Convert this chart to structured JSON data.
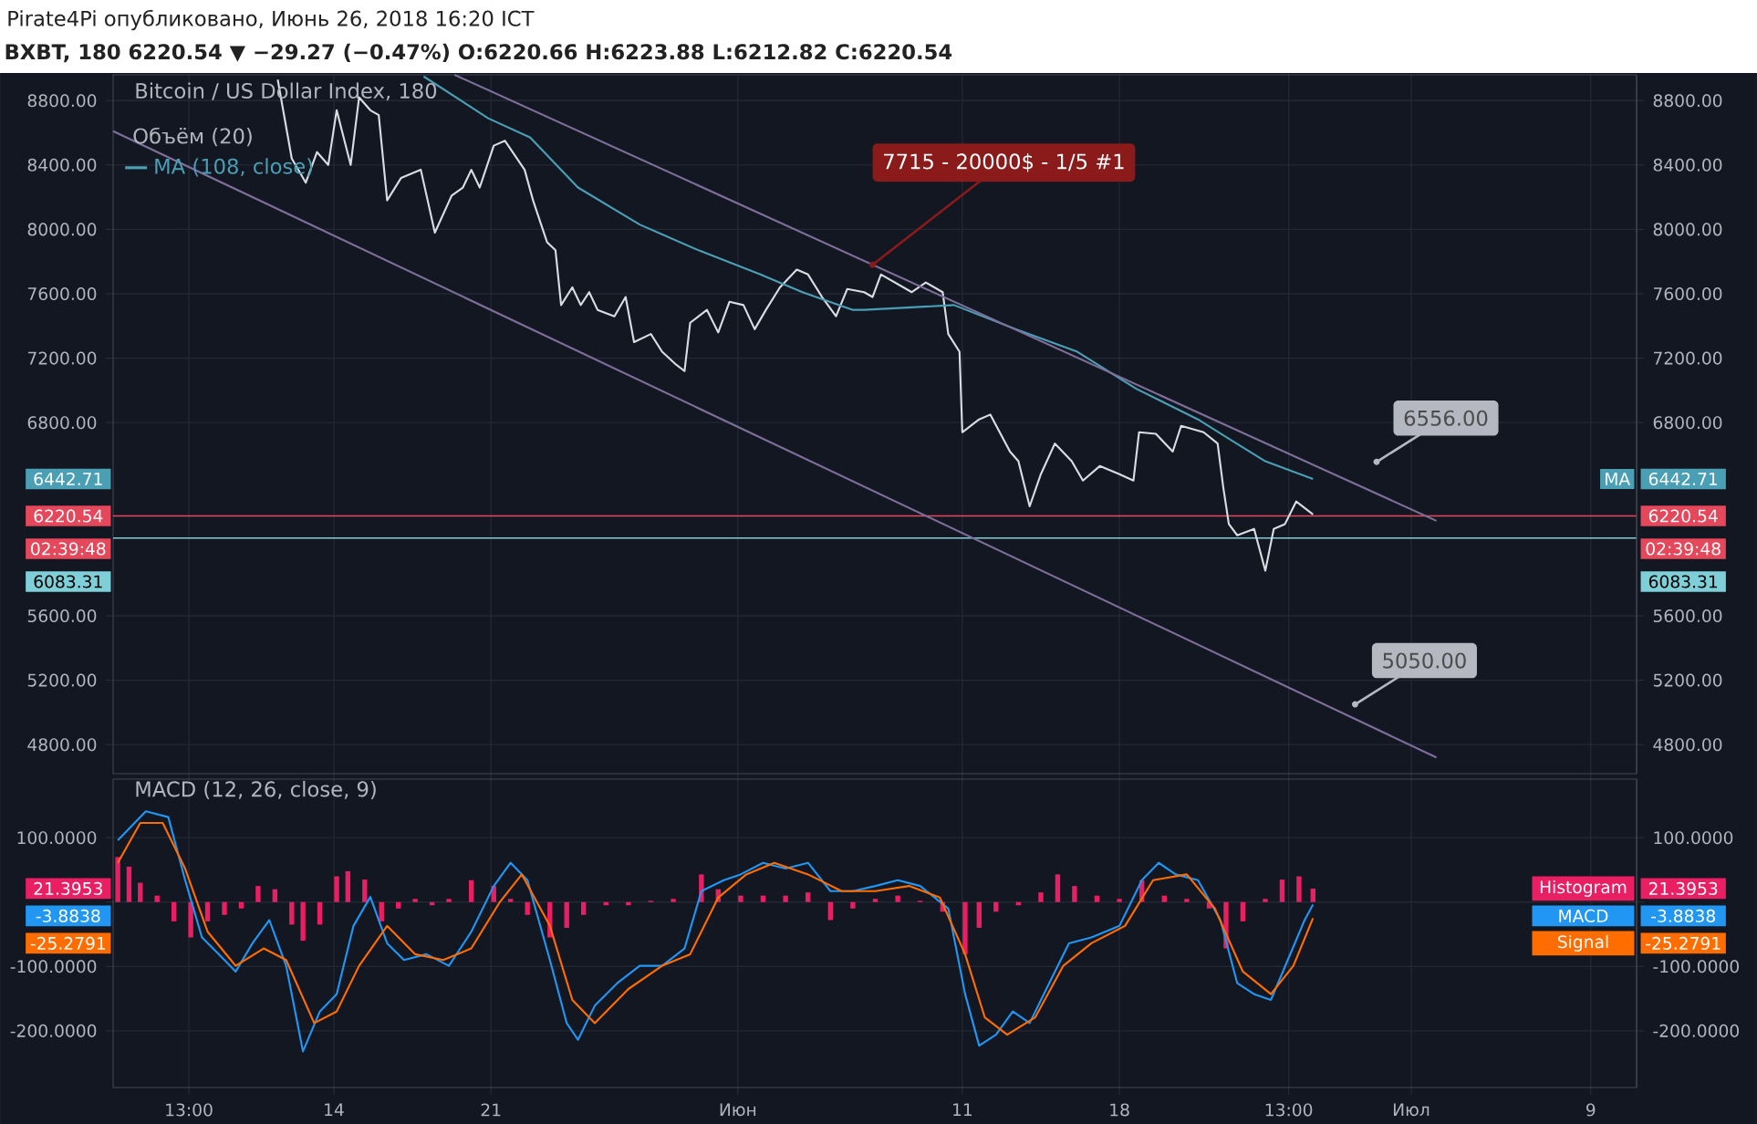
{
  "chart_data": [
    {
      "type": "line",
      "title": "Bitcoin / US Dollar Index, 180",
      "subtitle": "BXBT, 180 6220.54 ▼ −29.27 (−0.47%) O:6220.66 H:6223.88 L:6212.82 C:6220.54",
      "xlim": [
        "2018-05-04T04:00",
        "2018-07-11T01:00"
      ],
      "xticks": [
        {
          "value": "2018-05-07T13:00",
          "label": null
        },
        {
          "value": "2018-05-14",
          "label": null
        },
        {
          "value": "2018-05-21",
          "label": null
        },
        {
          "value": "2018-06-01",
          "label": null
        },
        {
          "value": "2018-06-11",
          "label": null
        },
        {
          "value": "2018-06-18",
          "label": null
        },
        {
          "value": "2018-06-25T13:00",
          "label": null
        },
        {
          "value": "2018-07-01",
          "label": null
        },
        {
          "value": "2018-07-09",
          "label": null
        }
      ],
      "ylim": [
        4620,
        8960
      ],
      "yticks": [
        {
          "value": 4800,
          "label": "4800.00"
        },
        {
          "value": 5200,
          "label": "5200.00"
        },
        {
          "value": 5600,
          "label": "5600.00"
        },
        {
          "value": 6800,
          "label": "6800.00"
        },
        {
          "value": 7200,
          "label": "7200.00"
        },
        {
          "value": 7600,
          "label": "7600.00"
        },
        {
          "value": 8000,
          "label": "8000.00"
        },
        {
          "value": 8400,
          "label": "8400.00"
        },
        {
          "value": 8800,
          "label": "8800.00"
        }
      ],
      "y2lim": [
        4620,
        8960
      ],
      "y2ticks": [
        {
          "value": 4800,
          "label": "4800.00"
        },
        {
          "value": 5200,
          "label": "5200.00"
        },
        {
          "value": 5600,
          "label": "5600.00"
        },
        {
          "value": 6800,
          "label": "6800.00"
        },
        {
          "value": 7200,
          "label": "7200.00"
        },
        {
          "value": 7600,
          "label": "7600.00"
        },
        {
          "value": 8000,
          "label": "8000.00"
        },
        {
          "value": 8400,
          "label": "8400.00"
        },
        {
          "value": 8800,
          "label": "8800.00"
        }
      ],
      "grid": true,
      "legend": "top left",
      "tick_labels": "y",
      "ref_lines": [
        {
          "axis": "y",
          "value": 6220.54,
          "label": "6220.54",
          "color": "#e5475b"
        },
        {
          "axis": "y",
          "value": 6083.31,
          "label": "6083.31",
          "color": "#7fcfd8"
        }
      ],
      "annotations": [
        "Pirate4Pi опубликовано, Июнь 26, 2018 16:20 ICT",
        "Объём (20)",
        {
          "text": "7715 - 20000$ - 1/5 #1",
          "x": "2018-06-07T00:00",
          "y": 7780
        },
        {
          "text": "6556.00",
          "x": "2018-06-29T11:00",
          "y": 6556
        },
        {
          "text": "5050.00",
          "x": "2018-06-28T12:00",
          "y": 5050
        },
        "6442.71",
        "MA",
        "02:39:48"
      ],
      "series": [
        {
          "color": "#d9dce3",
          "x": [
            "2018-05-11T12:00",
            "2018-05-12T03:00",
            "2018-05-12T18:00",
            "2018-05-13T06:00",
            "2018-05-13T18:00",
            "2018-05-14T03:00",
            "2018-05-14T18:00",
            "2018-05-15T03:00",
            "2018-05-15T15:00",
            "2018-05-16T00:00",
            "2018-05-16T09:00",
            "2018-05-17T00:00",
            "2018-05-17T21:00",
            "2018-05-18T12:00",
            "2018-05-19T06:00",
            "2018-05-19T18:00",
            "2018-05-20T03:00",
            "2018-05-20T12:00",
            "2018-05-21T03:00",
            "2018-05-21T15:00",
            "2018-05-22T12:00",
            "2018-05-22T21:00",
            "2018-05-23T12:00",
            "2018-05-23T21:00",
            "2018-05-24T03:00",
            "2018-05-24T15:00",
            "2018-05-25T00:00",
            "2018-05-25T09:00",
            "2018-05-25T18:00",
            "2018-05-26T12:00",
            "2018-05-27T00:00",
            "2018-05-27T09:00",
            "2018-05-28T03:00",
            "2018-05-28T15:00",
            "2018-05-29T06:00",
            "2018-05-29T15:00",
            "2018-05-29T21:00",
            "2018-05-30T15:00",
            "2018-05-31T03:00",
            "2018-05-31T15:00",
            "2018-06-01T06:00",
            "2018-06-01T18:00",
            "2018-06-02T06:00",
            "2018-06-02T21:00",
            "2018-06-03T15:00",
            "2018-06-04T03:00",
            "2018-06-04T18:00",
            "2018-06-05T09:00",
            "2018-06-05T21:00",
            "2018-06-06T15:00",
            "2018-06-07T00:00",
            "2018-06-07T09:00",
            "2018-06-08T18:00",
            "2018-06-09T09:00",
            "2018-06-10T03:00",
            "2018-06-10T09:00",
            "2018-06-10T21:00",
            "2018-06-11T00:00",
            "2018-06-11T18:00",
            "2018-06-12T06:00",
            "2018-06-13T03:00",
            "2018-06-13T12:00",
            "2018-06-14T00:00",
            "2018-06-14T12:00",
            "2018-06-15T03:00",
            "2018-06-15T21:00",
            "2018-06-16T09:00",
            "2018-06-17T03:00",
            "2018-06-18T00:00",
            "2018-06-18T15:00",
            "2018-06-18T21:00",
            "2018-06-19T15:00",
            "2018-06-20T09:00",
            "2018-06-20T18:00",
            "2018-06-21T18:00",
            "2018-06-22T09:00",
            "2018-06-22T15:00",
            "2018-06-22T21:00",
            "2018-06-23T06:00",
            "2018-06-24T00:00",
            "2018-06-24T12:00",
            "2018-06-24T21:00",
            "2018-06-25T09:00",
            "2018-06-25T21:00",
            "2018-06-26T15:00"
          ],
          "values": [
            8930,
            8440,
            8290,
            8480,
            8400,
            8740,
            8400,
            8820,
            8740,
            8710,
            8180,
            8320,
            8370,
            7980,
            8210,
            8260,
            8370,
            8260,
            8520,
            8550,
            8370,
            8180,
            7920,
            7870,
            7530,
            7640,
            7530,
            7610,
            7500,
            7460,
            7580,
            7300,
            7350,
            7240,
            7160,
            7120,
            7420,
            7500,
            7360,
            7550,
            7530,
            7380,
            7500,
            7640,
            7750,
            7720,
            7580,
            7460,
            7630,
            7610,
            7580,
            7720,
            7610,
            7670,
            7610,
            7350,
            7240,
            6740,
            6820,
            6850,
            6620,
            6560,
            6280,
            6480,
            6670,
            6560,
            6440,
            6530,
            6480,
            6440,
            6740,
            6730,
            6620,
            6780,
            6740,
            6670,
            6400,
            6170,
            6100,
            6140,
            5880,
            6140,
            6170,
            6310,
            6230
          ]
        },
        {
          "name": "MA (108, close)",
          "color": "#4a9fb5",
          "x": [
            "2018-05-18T00:00",
            "2018-05-20T21:00",
            "2018-05-22T18:00",
            "2018-05-24T21:00",
            "2018-05-27T15:00",
            "2018-05-30T06:00",
            "2018-06-02T00:00",
            "2018-06-03T21:00",
            "2018-06-06T03:00",
            "2018-06-06T15:00",
            "2018-06-10T15:00",
            "2018-06-13T09:00",
            "2018-06-16T03:00",
            "2018-06-18T18:00",
            "2018-06-21T12:00",
            "2018-06-22T21:00",
            "2018-06-24T12:00",
            "2018-06-26T15:00"
          ],
          "values": [
            8950,
            8690,
            8570,
            8260,
            8030,
            7870,
            7720,
            7610,
            7500,
            7500,
            7530,
            7380,
            7240,
            7010,
            6820,
            6700,
            6560,
            6450
          ]
        },
        {
          "color": "#7e6f9a",
          "x": [
            "2018-05-19T09:00",
            "2018-07-02T03:00"
          ],
          "values": [
            8960,
            6190
          ]
        },
        {
          "color": "#7e6f9a",
          "x": [
            "2018-05-04T04:00",
            "2018-07-02T03:00"
          ],
          "values": [
            8610,
            4720
          ]
        }
      ]
    },
    {
      "type": "line",
      "title": "MACD (12, 26, close, 9)",
      "xlim": [
        "2018-05-04T04:00",
        "2018-07-11T01:00"
      ],
      "xticks": [
        {
          "value": "2018-05-07T13:00",
          "label": "13:00"
        },
        {
          "value": "2018-05-14",
          "label": "14"
        },
        {
          "value": "2018-05-21",
          "label": "21"
        },
        {
          "value": "2018-06-01",
          "label": "Июн"
        },
        {
          "value": "2018-06-11",
          "label": "11"
        },
        {
          "value": "2018-06-18",
          "label": "18"
        },
        {
          "value": "2018-06-25T13:00",
          "label": "13:00"
        },
        {
          "value": "2018-07-01",
          "label": "Июл"
        },
        {
          "value": "2018-07-09",
          "label": "9"
        }
      ],
      "ylim": [
        -288,
        191
      ],
      "yticks": [
        {
          "value": -200,
          "label": "-200.0000"
        },
        {
          "value": -100,
          "label": "-100.0000"
        },
        {
          "value": 0,
          "label": null
        },
        {
          "value": 100,
          "label": "100.0000"
        }
      ],
      "y2lim": [
        -288,
        191
      ],
      "y2ticks": [
        {
          "value": -200,
          "label": "-200.0000"
        },
        {
          "value": -100,
          "label": "-100.0000"
        },
        {
          "value": 0,
          "label": null
        },
        {
          "value": 100,
          "label": "100.0000"
        }
      ],
      "grid": true,
      "legend": "right",
      "annotations": [
        "21.3953",
        "-3.8838",
        "-25.2791"
      ],
      "series": [
        {
          "type": "bar",
          "name": "Histogram",
          "color": "#e91e63",
          "x": [
            "2018-05-04T09:00",
            "2018-05-04T21:00",
            "2018-05-05T09:00",
            "2018-05-06T03:00",
            "2018-05-06T21:00",
            "2018-05-07T15:00",
            "2018-05-08T09:00",
            "2018-05-09T03:00",
            "2018-05-09T21:00",
            "2018-05-10T15:00",
            "2018-05-11T09:00",
            "2018-05-12T03:00",
            "2018-05-12T15:00",
            "2018-05-13T09:00",
            "2018-05-14T03:00",
            "2018-05-14T15:00",
            "2018-05-15T09:00",
            "2018-05-16T03:00",
            "2018-05-16T21:00",
            "2018-05-17T15:00",
            "2018-05-18T09:00",
            "2018-05-19T03:00",
            "2018-05-20T03:00",
            "2018-05-21T03:00",
            "2018-05-21T21:00",
            "2018-05-22T15:00",
            "2018-05-23T15:00",
            "2018-05-24T09:00",
            "2018-05-25T03:00",
            "2018-05-26T03:00",
            "2018-05-27T03:00",
            "2018-05-28T03:00",
            "2018-05-29T03:00",
            "2018-05-30T09:00",
            "2018-05-31T03:00",
            "2018-06-01T03:00",
            "2018-06-02T03:00",
            "2018-06-03T03:00",
            "2018-06-04T03:00",
            "2018-06-05T03:00",
            "2018-06-06T03:00",
            "2018-06-07T03:00",
            "2018-06-08T03:00",
            "2018-06-09T03:00",
            "2018-06-10T03:00",
            "2018-06-11T03:00",
            "2018-06-11T18:00",
            "2018-06-12T12:00",
            "2018-06-13T12:00",
            "2018-06-14T12:00",
            "2018-06-15T06:00",
            "2018-06-16T00:00",
            "2018-06-17T00:00",
            "2018-06-18T00:00",
            "2018-06-19T00:00",
            "2018-06-20T00:00",
            "2018-06-21T00:00",
            "2018-06-22T00:00",
            "2018-06-22T18:00",
            "2018-06-23T12:00",
            "2018-06-24T12:00",
            "2018-06-25T06:00",
            "2018-06-26T00:00",
            "2018-06-26T15:00"
          ],
          "values": [
            70,
            55,
            30,
            10,
            -30,
            -55,
            -30,
            -20,
            -10,
            25,
            20,
            -35,
            -60,
            -35,
            40,
            48,
            35,
            -30,
            -10,
            5,
            -5,
            5,
            34,
            25,
            5,
            -20,
            -55,
            -40,
            -20,
            -5,
            -5,
            2,
            5,
            43,
            20,
            10,
            10,
            10,
            15,
            -28,
            -10,
            5,
            10,
            2,
            -15,
            -81,
            -40,
            -15,
            -5,
            15,
            43,
            25,
            10,
            5,
            34,
            10,
            5,
            -10,
            -72,
            -30,
            5,
            35,
            40,
            21
          ]
        },
        {
          "name": "MACD",
          "color": "#2196f3",
          "x": [
            "2018-05-04T09:00",
            "2018-05-05T15:00",
            "2018-05-06T15:00",
            "2018-05-07T09:00",
            "2018-05-08T03:00",
            "2018-05-08T21:00",
            "2018-05-09T15:00",
            "2018-05-10T09:00",
            "2018-05-11T03:00",
            "2018-05-11T21:00",
            "2018-05-12T15:00",
            "2018-05-13T09:00",
            "2018-05-14T03:00",
            "2018-05-14T21:00",
            "2018-05-15T15:00",
            "2018-05-16T09:00",
            "2018-05-17T03:00",
            "2018-05-18T03:00",
            "2018-05-19T03:00",
            "2018-05-20T03:00",
            "2018-05-21T03:00",
            "2018-05-21T21:00",
            "2018-05-22T15:00",
            "2018-05-23T15:00",
            "2018-05-24T09:00",
            "2018-05-24T21:00",
            "2018-05-25T15:00",
            "2018-05-26T15:00",
            "2018-05-27T15:00",
            "2018-05-28T15:00",
            "2018-05-29T15:00",
            "2018-05-30T09:00",
            "2018-05-31T09:00",
            "2018-06-01T03:00",
            "2018-06-02T03:00",
            "2018-06-03T03:00",
            "2018-06-04T03:00",
            "2018-06-05T03:00",
            "2018-06-06T03:00",
            "2018-06-07T03:00",
            "2018-06-08T03:00",
            "2018-06-09T03:00",
            "2018-06-10T09:00",
            "2018-06-11T03:00",
            "2018-06-11T18:00",
            "2018-06-12T12:00",
            "2018-06-13T06:00",
            "2018-06-14T00:00",
            "2018-06-15T00:00",
            "2018-06-15T18:00",
            "2018-06-16T18:00",
            "2018-06-18T00:00",
            "2018-06-19T00:00",
            "2018-06-19T18:00",
            "2018-06-20T12:00",
            "2018-06-21T12:00",
            "2018-06-22T12:00",
            "2018-06-23T06:00",
            "2018-06-24T00:00",
            "2018-06-24T18:00",
            "2018-06-25T12:00",
            "2018-06-26T06:00",
            "2018-06-26T15:00"
          ],
          "values": [
            96,
            141,
            132,
            34,
            -55,
            -81,
            -108,
            -64,
            -28,
            -99,
            -232,
            -170,
            -143,
            -37,
            8,
            -64,
            -90,
            -81,
            -99,
            -46,
            25,
            61,
            34,
            -90,
            -188,
            -214,
            -161,
            -126,
            -99,
            -99,
            -72,
            17,
            34,
            43,
            61,
            52,
            61,
            17,
            17,
            25,
            34,
            25,
            -10,
            -143,
            -223,
            -206,
            -170,
            -188,
            -117,
            -64,
            -55,
            -37,
            34,
            61,
            43,
            34,
            -28,
            -126,
            -143,
            -152,
            -90,
            -28,
            -4
          ]
        },
        {
          "name": "Signal",
          "color": "#ff6d00",
          "x": [
            "2018-05-04T09:00",
            "2018-05-05T09:00",
            "2018-05-06T09:00",
            "2018-05-07T09:00",
            "2018-05-08T09:00",
            "2018-05-09T15:00",
            "2018-05-10T21:00",
            "2018-05-11T21:00",
            "2018-05-13T03:00",
            "2018-05-14T03:00",
            "2018-05-15T03:00",
            "2018-05-16T09:00",
            "2018-05-17T15:00",
            "2018-05-18T21:00",
            "2018-05-20T03:00",
            "2018-05-21T09:00",
            "2018-05-22T09:00",
            "2018-05-23T15:00",
            "2018-05-24T15:00",
            "2018-05-25T15:00",
            "2018-05-27T03:00",
            "2018-05-28T15:00",
            "2018-05-29T21:00",
            "2018-05-31T03:00",
            "2018-06-01T09:00",
            "2018-06-02T15:00",
            "2018-06-04T03:00",
            "2018-06-05T15:00",
            "2018-06-07T03:00",
            "2018-06-08T15:00",
            "2018-06-10T00:00",
            "2018-06-11T03:00",
            "2018-06-12T00:00",
            "2018-06-13T00:00",
            "2018-06-14T06:00",
            "2018-06-15T12:00",
            "2018-06-16T18:00",
            "2018-06-18T06:00",
            "2018-06-19T12:00",
            "2018-06-21T00:00",
            "2018-06-22T06:00",
            "2018-06-23T12:00",
            "2018-06-24T18:00",
            "2018-06-25T18:00",
            "2018-06-26T15:00"
          ],
          "values": [
            61,
            123,
            123,
            52,
            -46,
            -99,
            -72,
            -90,
            -188,
            -170,
            -99,
            -37,
            -81,
            -90,
            -72,
            -1,
            43,
            -37,
            -152,
            -188,
            -135,
            -99,
            -81,
            7,
            43,
            61,
            43,
            17,
            17,
            25,
            7,
            -81,
            -179,
            -206,
            -179,
            -99,
            -64,
            -37,
            34,
            43,
            -10,
            -108,
            -143,
            -99,
            -25
          ]
        }
      ]
    }
  ]
}
